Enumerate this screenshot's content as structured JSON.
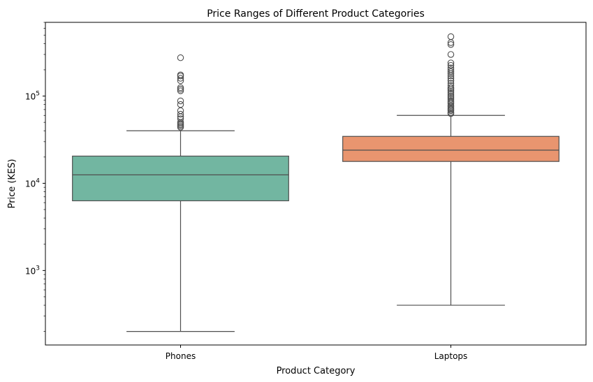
{
  "chart_data": {
    "type": "box",
    "title": "Price Ranges of Different Product Categories",
    "xlabel": "Product Category",
    "ylabel": "Price (KES)",
    "yscale": "log",
    "ylim": [
      140,
      700000
    ],
    "y_ticks": [
      {
        "value": 1000,
        "base": "10",
        "exp": "3"
      },
      {
        "value": 10000,
        "base": "10",
        "exp": "4"
      },
      {
        "value": 100000,
        "base": "10",
        "exp": "5"
      }
    ],
    "categories": [
      "Phones",
      "Laptops"
    ],
    "boxes": [
      {
        "name": "Phones",
        "color": "#72b6a1",
        "whisker_low": 200,
        "q1": 6300,
        "median": 12500,
        "q3": 20500,
        "whisker_high": 40000,
        "outliers": [
          44000,
          45500,
          47000,
          48500,
          50000,
          55000,
          58000,
          62000,
          68000,
          80000,
          88000,
          115000,
          120000,
          125000,
          150000,
          160000,
          170000,
          175000,
          275000
        ]
      },
      {
        "name": "Laptops",
        "color": "#e9956f",
        "whisker_low": 400,
        "q1": 17800,
        "median": 24000,
        "q3": 34500,
        "whisker_high": 60000,
        "outliers": [
          63000,
          65000,
          68000,
          70000,
          72000,
          75000,
          78000,
          82000,
          85000,
          88000,
          92000,
          96000,
          100000,
          105000,
          110000,
          115000,
          120000,
          125000,
          132000,
          140000,
          150000,
          160000,
          170000,
          180000,
          190000,
          200000,
          210000,
          225000,
          240000,
          300000,
          390000,
          410000,
          480000
        ]
      }
    ],
    "grid": false,
    "legend": "none"
  }
}
